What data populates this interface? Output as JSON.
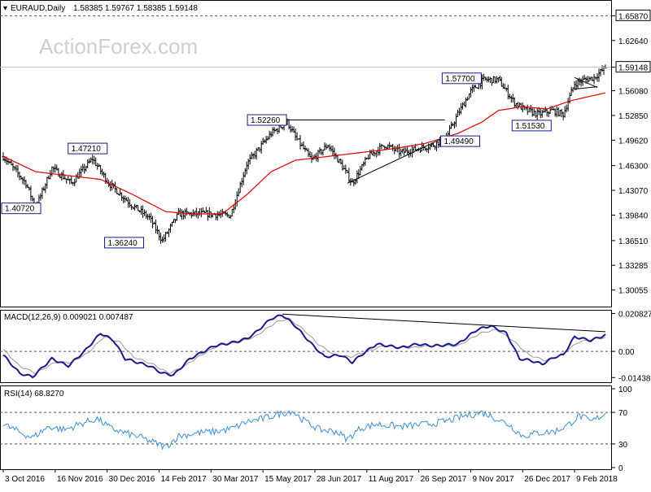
{
  "header": {
    "symbol": "EURAUD,Daily",
    "ohlc": "1.58385 1.59767 1.58385 1.59148"
  },
  "watermark": "ActionForex.com",
  "colors": {
    "price": "#000000",
    "ma": "#e00000",
    "macd": "#1a1a8c",
    "signal": "#9a9a9a",
    "rsi": "#3b8fd9",
    "dashed": "#555555",
    "label_border": "#1a1a8c"
  },
  "chart_data": [
    {
      "type": "candlestick",
      "title": "EURAUD,Daily",
      "ylim": [
        1.28,
        1.675
      ],
      "y_ticks": [
        "1.65870",
        "1.62640",
        "1.59148",
        "1.56080",
        "1.52850",
        "1.49620",
        "1.46300",
        "1.43070",
        "1.39840",
        "1.36510",
        "1.33285",
        "1.30055"
      ],
      "y_tick_values": [
        1.6587,
        1.6264,
        1.59148,
        1.5608,
        1.5285,
        1.4962,
        1.463,
        1.4307,
        1.3984,
        1.3651,
        1.33285,
        1.30055
      ],
      "x_labels": [
        "3 Oct 2016",
        "16 Nov 2016",
        "30 Dec 2016",
        "14 Feb 2017",
        "30 Mar 2017",
        "15 May 2017",
        "28 Jun 2017",
        "11 Aug 2017",
        "26 Sep 2017",
        "9 Nov 2017",
        "26 Dec 2017",
        "9 Feb 2018"
      ],
      "x_label_index": [
        0,
        32,
        64,
        96,
        128,
        160,
        192,
        224,
        256,
        288,
        320,
        352
      ],
      "n_bars": 372,
      "price_anchors": [
        [
          0,
          1.475
        ],
        [
          14,
          1.44
        ],
        [
          20,
          1.408
        ],
        [
          30,
          1.46
        ],
        [
          42,
          1.44
        ],
        [
          55,
          1.472
        ],
        [
          65,
          1.44
        ],
        [
          80,
          1.41
        ],
        [
          90,
          1.395
        ],
        [
          98,
          1.365
        ],
        [
          108,
          1.4
        ],
        [
          125,
          1.4
        ],
        [
          140,
          1.398
        ],
        [
          150,
          1.465
        ],
        [
          165,
          1.505
        ],
        [
          175,
          1.52
        ],
        [
          180,
          1.5
        ],
        [
          190,
          1.47
        ],
        [
          200,
          1.49
        ],
        [
          208,
          1.465
        ],
        [
          215,
          1.44
        ],
        [
          225,
          1.475
        ],
        [
          235,
          1.49
        ],
        [
          245,
          1.48
        ],
        [
          255,
          1.485
        ],
        [
          265,
          1.49
        ],
        [
          273,
          1.5
        ],
        [
          280,
          1.53
        ],
        [
          288,
          1.56
        ],
        [
          296,
          1.575
        ],
        [
          305,
          1.575
        ],
        [
          315,
          1.545
        ],
        [
          322,
          1.535
        ],
        [
          330,
          1.53
        ],
        [
          338,
          1.535
        ],
        [
          345,
          1.53
        ],
        [
          352,
          1.57
        ],
        [
          358,
          1.575
        ],
        [
          364,
          1.578
        ],
        [
          371,
          1.591
        ]
      ],
      "ma_anchors": [
        [
          0,
          1.475
        ],
        [
          20,
          1.455
        ],
        [
          40,
          1.45
        ],
        [
          60,
          1.445
        ],
        [
          80,
          1.425
        ],
        [
          100,
          1.403
        ],
        [
          115,
          1.4
        ],
        [
          135,
          1.4
        ],
        [
          150,
          1.425
        ],
        [
          165,
          1.455
        ],
        [
          180,
          1.47
        ],
        [
          200,
          1.475
        ],
        [
          220,
          1.48
        ],
        [
          240,
          1.485
        ],
        [
          260,
          1.492
        ],
        [
          280,
          1.505
        ],
        [
          295,
          1.52
        ],
        [
          305,
          1.535
        ],
        [
          320,
          1.54
        ],
        [
          335,
          1.537
        ],
        [
          350,
          1.548
        ],
        [
          371,
          1.558
        ]
      ],
      "price_labels": [
        {
          "text": "1.40720",
          "i": 22,
          "y": 1.4072,
          "side": "left",
          "anchor_y": 1.4072
        },
        {
          "text": "1.47210",
          "i": 52,
          "y": 1.4721,
          "side": "above",
          "anchor_y": 1.4721
        },
        {
          "text": "1.36240",
          "i": 88,
          "y": 1.3624,
          "side": "left",
          "anchor_y": 1.3624
        },
        {
          "text": "1.52260",
          "i": 176,
          "y": 1.5226,
          "side": "left",
          "anchor_y": 1.5226
        },
        {
          "text": "1.49490",
          "i": 268,
          "y": 1.4949,
          "side": "right",
          "anchor_y": 1.4949
        },
        {
          "text": "1.57700",
          "i": 296,
          "y": 1.577,
          "side": "left",
          "anchor_y": 1.577
        },
        {
          "text": "1.51530",
          "i": 312,
          "y": 1.5153,
          "side": "right",
          "anchor_y": 1.5153
        }
      ],
      "trendlines": [
        {
          "from": [
            176,
            1.5226
          ],
          "to": [
            272,
            1.5226
          ]
        },
        {
          "from": [
            212,
            1.44
          ],
          "to": [
            272,
            1.5
          ]
        },
        {
          "from": [
            352,
            1.578
          ],
          "to": [
            366,
            1.565
          ]
        },
        {
          "from": [
            352,
            1.563
          ],
          "to": [
            366,
            1.566
          ]
        }
      ]
    },
    {
      "type": "line",
      "title": "MACD(12,26,9) 0.009021 0.007487",
      "ylim": [
        -0.0165,
        0.0215
      ],
      "y_ticks": [
        "0.020827",
        "0.00",
        "-0.014386"
      ],
      "y_tick_values": [
        0.020827,
        0.0,
        -0.014386
      ],
      "macd_anchors": [
        [
          0,
          -0.002
        ],
        [
          10,
          -0.012
        ],
        [
          18,
          -0.014
        ],
        [
          30,
          -0.004
        ],
        [
          40,
          -0.008
        ],
        [
          50,
          0.0
        ],
        [
          60,
          0.01
        ],
        [
          68,
          0.006
        ],
        [
          75,
          -0.004
        ],
        [
          90,
          -0.008
        ],
        [
          98,
          -0.012
        ],
        [
          105,
          -0.013
        ],
        [
          115,
          -0.004
        ],
        [
          130,
          0.003
        ],
        [
          142,
          0.005
        ],
        [
          150,
          0.007
        ],
        [
          155,
          0.01
        ],
        [
          165,
          0.018
        ],
        [
          172,
          0.02
        ],
        [
          180,
          0.014
        ],
        [
          190,
          0.004
        ],
        [
          198,
          -0.003
        ],
        [
          208,
          -0.002
        ],
        [
          215,
          -0.006
        ],
        [
          222,
          -0.001
        ],
        [
          230,
          0.004
        ],
        [
          245,
          0.002
        ],
        [
          255,
          0.004
        ],
        [
          265,
          0.003
        ],
        [
          280,
          0.004
        ],
        [
          292,
          0.012
        ],
        [
          300,
          0.014
        ],
        [
          310,
          0.01
        ],
        [
          318,
          -0.004
        ],
        [
          325,
          -0.005
        ],
        [
          332,
          -0.007
        ],
        [
          340,
          -0.003
        ],
        [
          345,
          -0.002
        ],
        [
          352,
          0.008
        ],
        [
          362,
          0.006
        ],
        [
          371,
          0.009
        ]
      ],
      "signal_anchors": [
        [
          0,
          0.001
        ],
        [
          10,
          -0.008
        ],
        [
          20,
          -0.012
        ],
        [
          32,
          -0.006
        ],
        [
          42,
          -0.006
        ],
        [
          52,
          -0.001
        ],
        [
          62,
          0.008
        ],
        [
          72,
          0.005
        ],
        [
          80,
          -0.003
        ],
        [
          92,
          -0.007
        ],
        [
          102,
          -0.012
        ],
        [
          110,
          -0.009
        ],
        [
          120,
          -0.003
        ],
        [
          132,
          0.003
        ],
        [
          145,
          0.005
        ],
        [
          155,
          0.008
        ],
        [
          168,
          0.016
        ],
        [
          176,
          0.018
        ],
        [
          185,
          0.012
        ],
        [
          194,
          0.004
        ],
        [
          204,
          -0.002
        ],
        [
          214,
          -0.003
        ],
        [
          224,
          0.0
        ],
        [
          234,
          0.003
        ],
        [
          250,
          0.002
        ],
        [
          262,
          0.003
        ],
        [
          280,
          0.003
        ],
        [
          294,
          0.01
        ],
        [
          304,
          0.012
        ],
        [
          314,
          0.006
        ],
        [
          324,
          -0.002
        ],
        [
          334,
          -0.005
        ],
        [
          344,
          -0.002
        ],
        [
          354,
          0.005
        ],
        [
          364,
          0.007
        ],
        [
          371,
          0.0075
        ]
      ],
      "divergence_line": {
        "from": [
          172,
          0.0205
        ],
        "to": [
          371,
          0.0108
        ]
      }
    },
    {
      "type": "line",
      "title": "RSI(14) 68.8270",
      "ylim": [
        0,
        100
      ],
      "y_ticks": [
        "100",
        "70",
        "30",
        "0"
      ],
      "y_tick_values": [
        100,
        70,
        30,
        0
      ],
      "rsi_anchors": [
        [
          0,
          55
        ],
        [
          10,
          45
        ],
        [
          18,
          38
        ],
        [
          28,
          52
        ],
        [
          38,
          48
        ],
        [
          48,
          56
        ],
        [
          58,
          62
        ],
        [
          66,
          50
        ],
        [
          75,
          44
        ],
        [
          85,
          38
        ],
        [
          95,
          30
        ],
        [
          100,
          26
        ],
        [
          108,
          40
        ],
        [
          120,
          44
        ],
        [
          132,
          46
        ],
        [
          142,
          50
        ],
        [
          150,
          58
        ],
        [
          160,
          62
        ],
        [
          170,
          68
        ],
        [
          178,
          72
        ],
        [
          185,
          60
        ],
        [
          195,
          48
        ],
        [
          205,
          46
        ],
        [
          212,
          36
        ],
        [
          220,
          50
        ],
        [
          230,
          55
        ],
        [
          245,
          52
        ],
        [
          255,
          54
        ],
        [
          265,
          56
        ],
        [
          275,
          60
        ],
        [
          285,
          66
        ],
        [
          295,
          70
        ],
        [
          302,
          64
        ],
        [
          312,
          54
        ],
        [
          320,
          40
        ],
        [
          330,
          44
        ],
        [
          340,
          46
        ],
        [
          348,
          54
        ],
        [
          355,
          66
        ],
        [
          362,
          58
        ],
        [
          371,
          68.8
        ]
      ]
    }
  ]
}
